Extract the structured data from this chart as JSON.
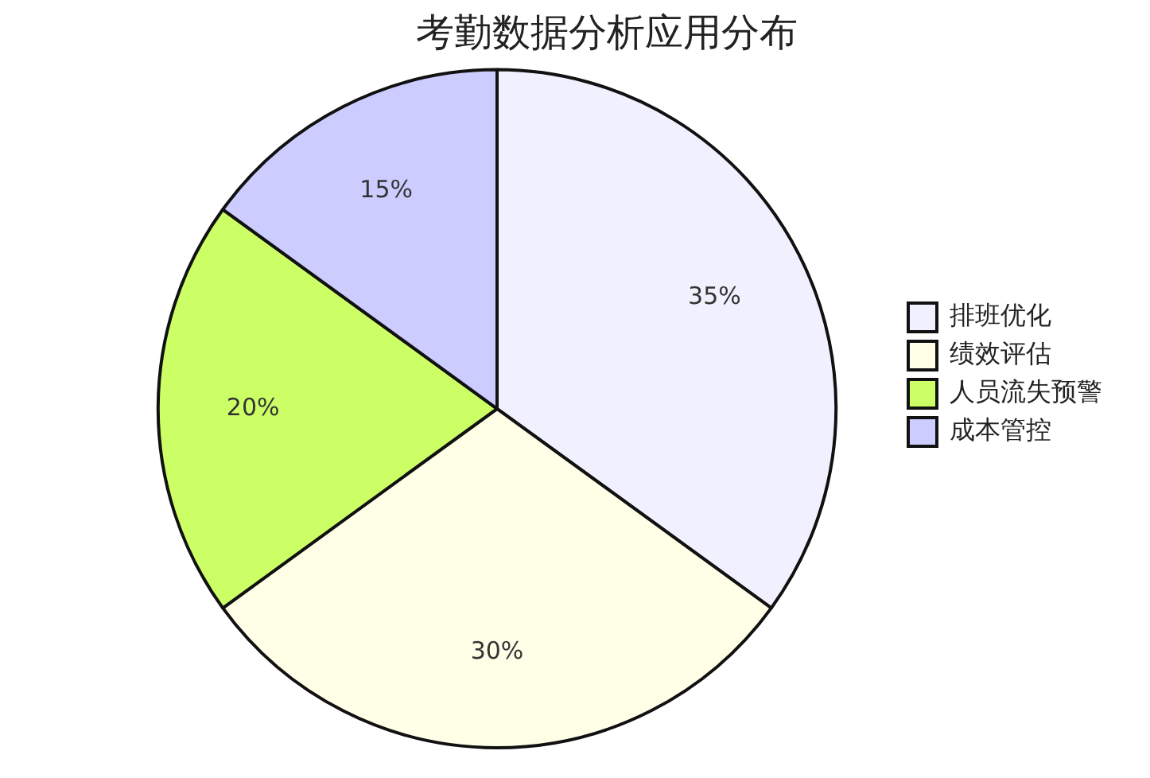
{
  "chart_data": {
    "type": "pie",
    "title": "考勤数据分析应用分布",
    "categories": [
      "排班优化",
      "绩效评估",
      "人员流失预警",
      "成本管控"
    ],
    "values": [
      35,
      30,
      20,
      15
    ],
    "colors": [
      "#f0f0ff",
      "#ffffe8",
      "#ccff66",
      "#ccccff"
    ],
    "value_labels": [
      "35%",
      "30%",
      "20%",
      "15%"
    ],
    "legend": "right"
  }
}
